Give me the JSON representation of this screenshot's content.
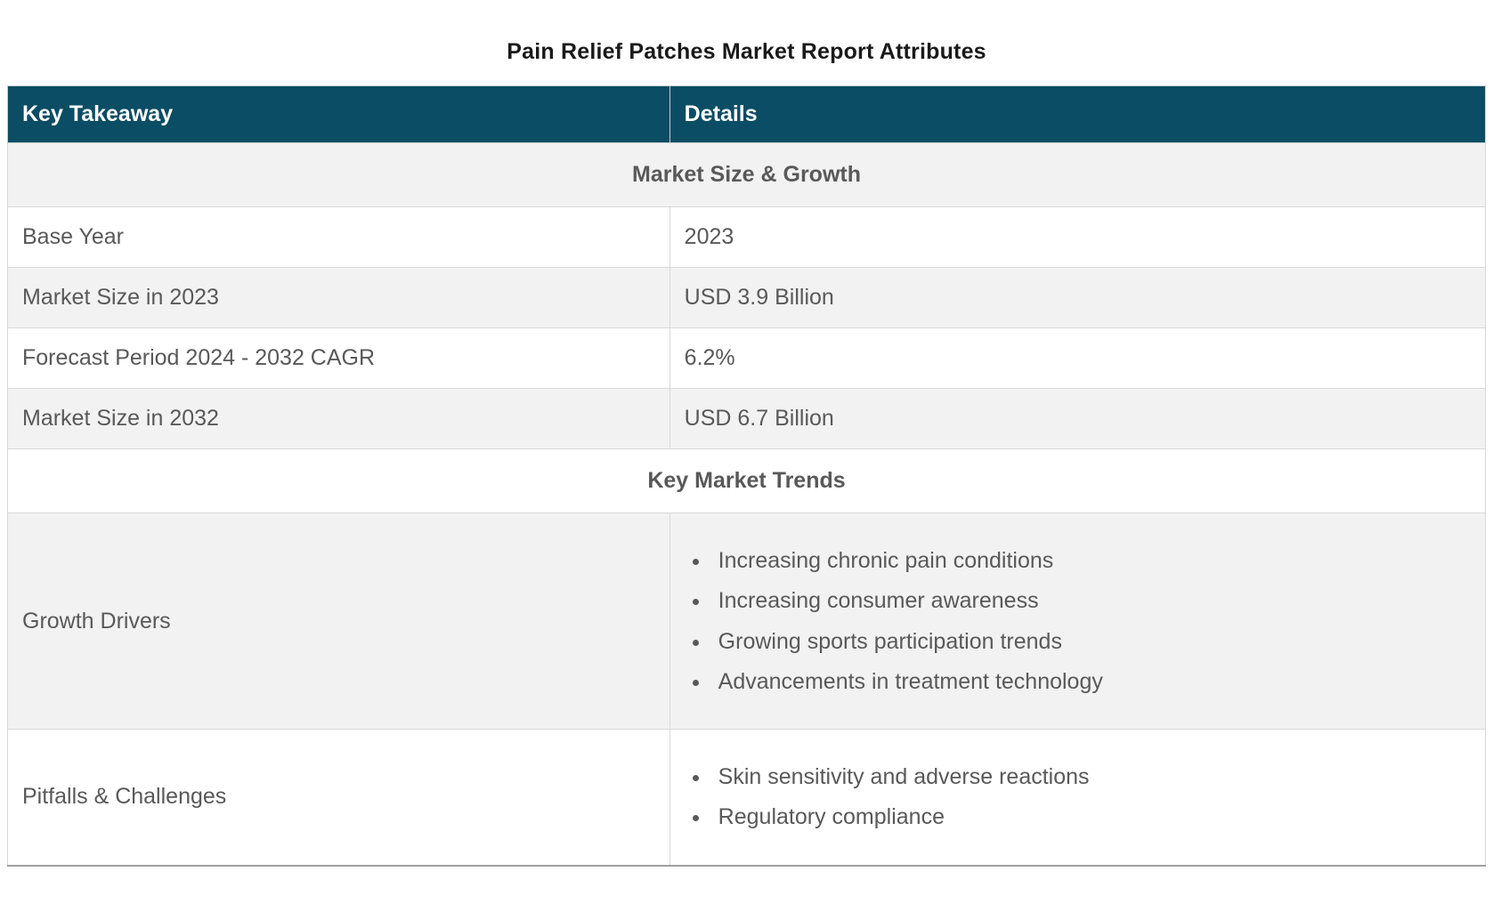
{
  "page": {
    "title": "Pain Relief Patches Market Report Attributes"
  },
  "colors": {
    "header_bg": "#0A4D64",
    "header_text": "#FFFFFF",
    "row_alt_bg": "#F2F2F2",
    "row_bg": "#FFFFFF",
    "body_text": "#595959",
    "title_text": "#1A1A1A",
    "border": "#D9D9D9"
  },
  "table": {
    "columns": [
      {
        "label": "Key Takeaway"
      },
      {
        "label": "Details"
      }
    ],
    "sections": [
      {
        "heading": "Market Size & Growth",
        "rows": [
          {
            "key": "Base Year",
            "value": "2023"
          },
          {
            "key": "Market Size in 2023",
            "value": "USD 3.9 Billion"
          },
          {
            "key": "Forecast Period 2024 - 2032 CAGR",
            "value": "6.2%"
          },
          {
            "key": "Market Size in 2032",
            "value": "USD 6.7 Billion"
          }
        ]
      },
      {
        "heading": "Key Market Trends",
        "rows": [
          {
            "key": "Growth Drivers",
            "bullets": [
              "Increasing chronic pain conditions",
              "Increasing consumer awareness",
              "Growing sports participation trends",
              "Advancements in treatment technology"
            ]
          },
          {
            "key": "Pitfalls & Challenges",
            "bullets": [
              "Skin sensitivity and adverse reactions",
              "Regulatory compliance"
            ]
          }
        ]
      }
    ]
  }
}
